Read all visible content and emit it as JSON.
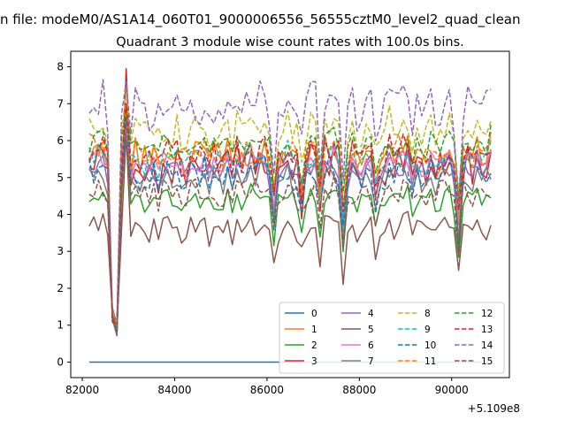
{
  "chart_data": {
    "type": "line",
    "suptitle": "n file: modeM0/AS1A14_060T01_9000006556_56555cztM0_level2_quad_clean",
    "title": "Quadrant 3 module wise count rates with 100.0s bins.",
    "xlabel": "",
    "ylabel": "",
    "x_offset_label": "+5.109e8",
    "xlim": [
      81750,
      91250
    ],
    "ylim": [
      -0.42,
      8.42
    ],
    "x_ticks": [
      82000,
      84000,
      86000,
      88000,
      90000
    ],
    "x_tick_labels": [
      "82000",
      "84000",
      "86000",
      "88000",
      "90000"
    ],
    "y_ticks": [
      0,
      1,
      2,
      3,
      4,
      5,
      6,
      7,
      8
    ],
    "y_tick_labels": [
      "0",
      "1",
      "2",
      "3",
      "4",
      "5",
      "6",
      "7",
      "8"
    ],
    "x_start": 82150,
    "x_step": 100,
    "n_points": 88,
    "dip": {
      "start_index": 5,
      "values": [
        1.3,
        0.9
      ]
    },
    "spike_index": 8,
    "legend": {
      "position": "lower-right",
      "columns": 4
    },
    "series": [
      {
        "name": "0",
        "color": "#1f77b4",
        "dash": "solid",
        "base": 0.0,
        "amp": 0.0,
        "seed": 1,
        "spike": 0.0
      },
      {
        "name": "1",
        "color": "#ff7f0e",
        "dash": "solid",
        "base": 5.6,
        "amp": 0.45,
        "seed": 2,
        "spike": 7.0
      },
      {
        "name": "2",
        "color": "#2ca02c",
        "dash": "solid",
        "base": 4.4,
        "amp": 0.3,
        "seed": 3,
        "spike": 6.9
      },
      {
        "name": "3",
        "color": "#d62728",
        "dash": "solid",
        "base": 5.3,
        "amp": 0.45,
        "seed": 4,
        "spike": 7.95
      },
      {
        "name": "4",
        "color": "#9467bd",
        "dash": "solid",
        "base": 5.2,
        "amp": 0.35,
        "seed": 5,
        "spike": 6.4
      },
      {
        "name": "5",
        "color": "#8c564b",
        "dash": "solid",
        "base": 3.6,
        "amp": 0.3,
        "seed": 6,
        "spike": 6.2
      },
      {
        "name": "6",
        "color": "#e377c2",
        "dash": "solid",
        "base": 5.4,
        "amp": 0.3,
        "seed": 7,
        "spike": 6.3
      },
      {
        "name": "7",
        "color": "#7f7f7f",
        "dash": "solid",
        "base": 5.0,
        "amp": 0.35,
        "seed": 8,
        "spike": 6.6
      },
      {
        "name": "8",
        "color": "#bcbd22",
        "dash": "dashed",
        "base": 6.3,
        "amp": 0.4,
        "seed": 9,
        "spike": 7.3
      },
      {
        "name": "9",
        "color": "#17becf",
        "dash": "dashed",
        "base": 5.5,
        "amp": 0.35,
        "seed": 10,
        "spike": 6.8
      },
      {
        "name": "10",
        "color": "#1f77b4",
        "dash": "dashed",
        "base": 5.1,
        "amp": 0.4,
        "seed": 11,
        "spike": 6.6
      },
      {
        "name": "11",
        "color": "#ff7f0e",
        "dash": "dashed",
        "base": 5.7,
        "amp": 0.4,
        "seed": 12,
        "spike": 6.9
      },
      {
        "name": "12",
        "color": "#2ca02c",
        "dash": "dashed",
        "base": 5.9,
        "amp": 0.35,
        "seed": 13,
        "spike": 6.9
      },
      {
        "name": "13",
        "color": "#d62728",
        "dash": "dashed",
        "base": 5.6,
        "amp": 0.4,
        "seed": 14,
        "spike": 7.0
      },
      {
        "name": "14",
        "color": "#9467bd",
        "dash": "dashed",
        "base": 6.9,
        "amp": 0.5,
        "seed": 15,
        "spike": 7.6
      },
      {
        "name": "15",
        "color": "#8c564b",
        "dash": "dashed",
        "base": 4.6,
        "amp": 0.35,
        "seed": 16,
        "spike": 6.0
      }
    ]
  }
}
